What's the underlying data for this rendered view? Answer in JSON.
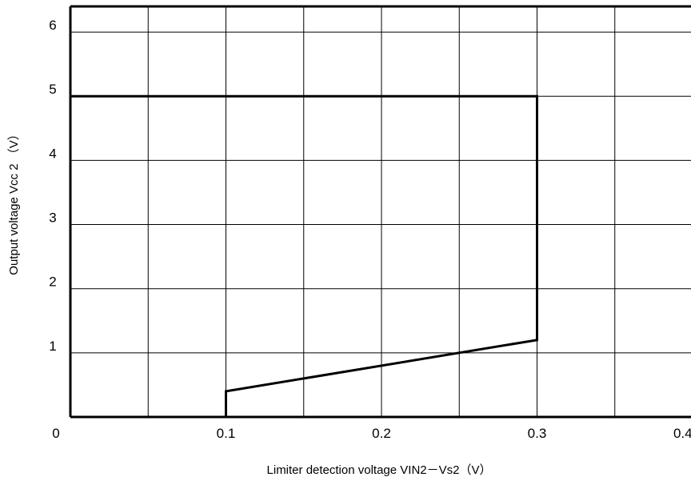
{
  "chart_data": {
    "type": "line",
    "title": "",
    "xlabel": "Limiter detection voltage VIN2－Vs2（V）",
    "ylabel": "Output voltage Vcc 2 （V）",
    "xlim": [
      0,
      0.4
    ],
    "ylim": [
      0,
      6.4
    ],
    "x_ticks": [
      {
        "value": 0,
        "label": "0"
      },
      {
        "value": 0.1,
        "label": "0.1"
      },
      {
        "value": 0.2,
        "label": "0.2"
      },
      {
        "value": 0.3,
        "label": "0.3"
      },
      {
        "value": 0.4,
        "label": "0.4"
      }
    ],
    "y_ticks": [
      {
        "value": 1,
        "label": "1"
      },
      {
        "value": 2,
        "label": "2"
      },
      {
        "value": 3,
        "label": "3"
      },
      {
        "value": 4,
        "label": "4"
      },
      {
        "value": 5,
        "label": "5"
      },
      {
        "value": 6,
        "label": "6"
      }
    ],
    "x_grid_step": 0.05,
    "y_grid_step": 1,
    "grid": true,
    "legend": "none",
    "line_color": "#000000",
    "series": [
      {
        "x": [
          0,
          0.3,
          0.3,
          0.1,
          0.1
        ],
        "y": [
          5,
          5,
          1.2,
          0.4,
          0
        ]
      }
    ]
  }
}
